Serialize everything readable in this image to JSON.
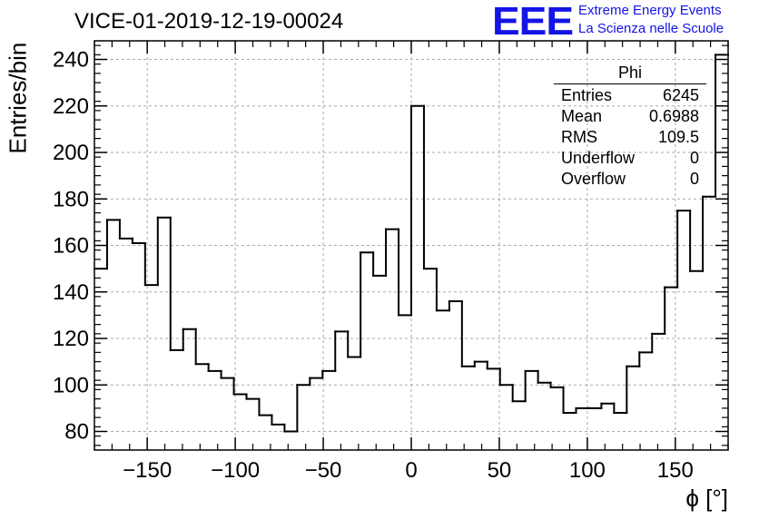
{
  "page": {
    "title": "VICE-01-2019-12-19-00024",
    "logo": "EEE",
    "logo_line1": "Extreme Energy Events",
    "logo_line2": "La Scienza nelle Scuole"
  },
  "stats_box": {
    "title": "Phi",
    "rows": [
      {
        "label": "Entries",
        "value": "6245"
      },
      {
        "label": "Mean",
        "value": "0.6988"
      },
      {
        "label": "RMS",
        "value": "109.5"
      },
      {
        "label": "Underflow",
        "value": "0"
      },
      {
        "label": "Overflow",
        "value": "0"
      }
    ]
  },
  "chart_data": {
    "type": "histogram",
    "title": "VICE-01-2019-12-19-00024",
    "xlabel": "ϕ [°]",
    "ylabel": "Entries/bin",
    "xlim": [
      -180,
      180
    ],
    "ylim": [
      72,
      248
    ],
    "bin_width": 7.2,
    "x_ticks": [
      -150,
      -100,
      -50,
      0,
      50,
      100,
      150
    ],
    "x_tick_labels": [
      "−150",
      "−100",
      "−50",
      "0",
      "50",
      "100",
      "150"
    ],
    "y_ticks": [
      80,
      100,
      120,
      140,
      160,
      180,
      200,
      220,
      240
    ],
    "y_tick_labels": [
      "80",
      "100",
      "120",
      "140",
      "160",
      "180",
      "200",
      "220",
      "240"
    ],
    "grid": true,
    "line_color": "#000000",
    "values": [
      150,
      171,
      163,
      161,
      143,
      172,
      115,
      124,
      109,
      106,
      103,
      96,
      94,
      87,
      83,
      80,
      100,
      103,
      106,
      123,
      112,
      157,
      147,
      167,
      130,
      220,
      150,
      132,
      136,
      108,
      110,
      107,
      100,
      93,
      106,
      101,
      99,
      88,
      90,
      90,
      92,
      88,
      108,
      114,
      122,
      142,
      175,
      149,
      181,
      242
    ]
  }
}
